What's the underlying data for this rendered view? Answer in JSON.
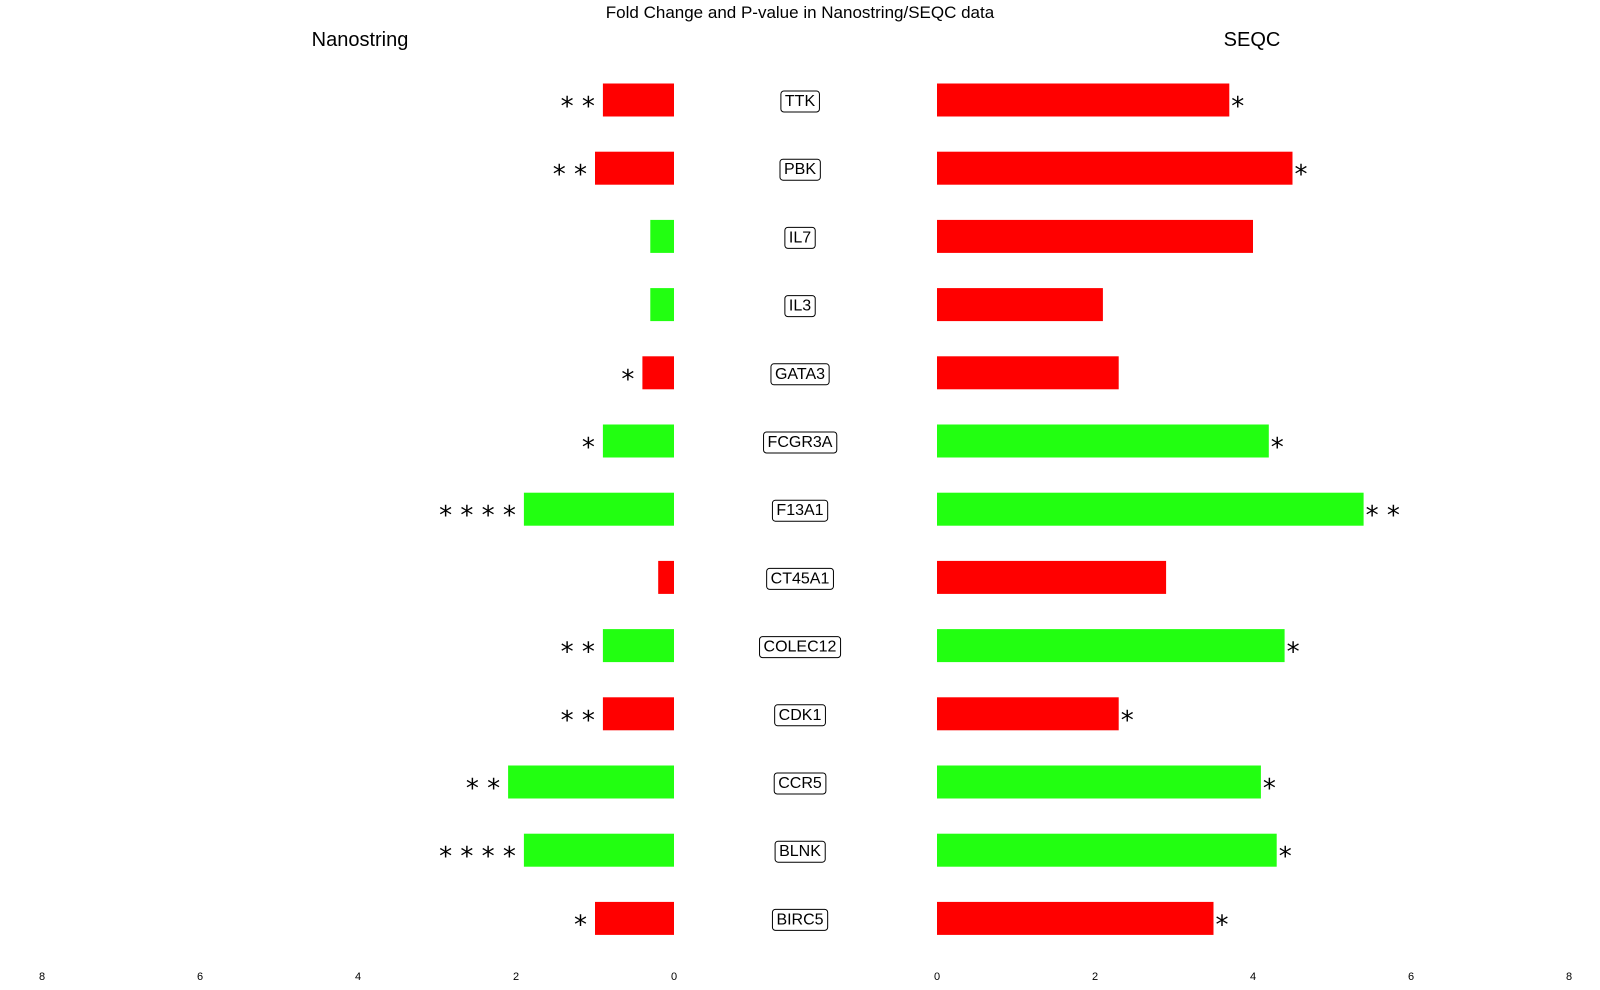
{
  "chart_data": {
    "type": "bar",
    "title": "Fold Change and P-value in Nanostring/SEQC data",
    "panels": [
      {
        "name": "Nanostring",
        "direction": "left",
        "xlim": [
          0,
          8
        ],
        "ticks": [
          "0",
          "2",
          "4",
          "6",
          "8"
        ]
      },
      {
        "name": "SEQC",
        "direction": "right",
        "xlim": [
          0,
          8
        ],
        "ticks": [
          "0",
          "2",
          "4",
          "6",
          "8"
        ]
      }
    ],
    "categories": [
      "TTK",
      "PBK",
      "IL7",
      "IL3",
      "GATA3",
      "FCGR3A",
      "F13A1",
      "CT45A1",
      "COLEC12",
      "CDK1",
      "CCR5",
      "BLNK",
      "BIRC5"
    ],
    "series": [
      {
        "name": "Nanostring",
        "values": [
          0.9,
          1.0,
          0.3,
          0.3,
          0.4,
          0.9,
          1.9,
          0.2,
          0.9,
          0.9,
          2.1,
          1.9,
          1.0
        ],
        "colors": [
          "#ff0000",
          "#ff0000",
          "#22ff11",
          "#22ff11",
          "#ff0000",
          "#22ff11",
          "#22ff11",
          "#ff0000",
          "#22ff11",
          "#ff0000",
          "#22ff11",
          "#22ff11",
          "#ff0000"
        ],
        "significance": [
          "* *",
          "* *",
          "",
          "",
          "*",
          "*",
          "* * * *",
          "",
          "* *",
          "* *",
          "* *",
          "* * * *",
          "*"
        ]
      },
      {
        "name": "SEQC",
        "values": [
          3.7,
          4.5,
          4.0,
          2.1,
          2.3,
          4.2,
          5.4,
          2.9,
          4.4,
          2.3,
          4.1,
          4.3,
          3.5
        ],
        "colors": [
          "#ff0000",
          "#ff0000",
          "#ff0000",
          "#ff0000",
          "#ff0000",
          "#22ff11",
          "#22ff11",
          "#ff0000",
          "#22ff11",
          "#ff0000",
          "#22ff11",
          "#22ff11",
          "#ff0000"
        ],
        "significance": [
          "*",
          "*",
          "",
          "",
          "",
          "*",
          "* *",
          "",
          "*",
          "*",
          "*",
          "*",
          "*"
        ]
      }
    ],
    "grid": false,
    "legend": "none",
    "colors": {
      "up": "#ff0000",
      "down": "#22ff11"
    }
  }
}
